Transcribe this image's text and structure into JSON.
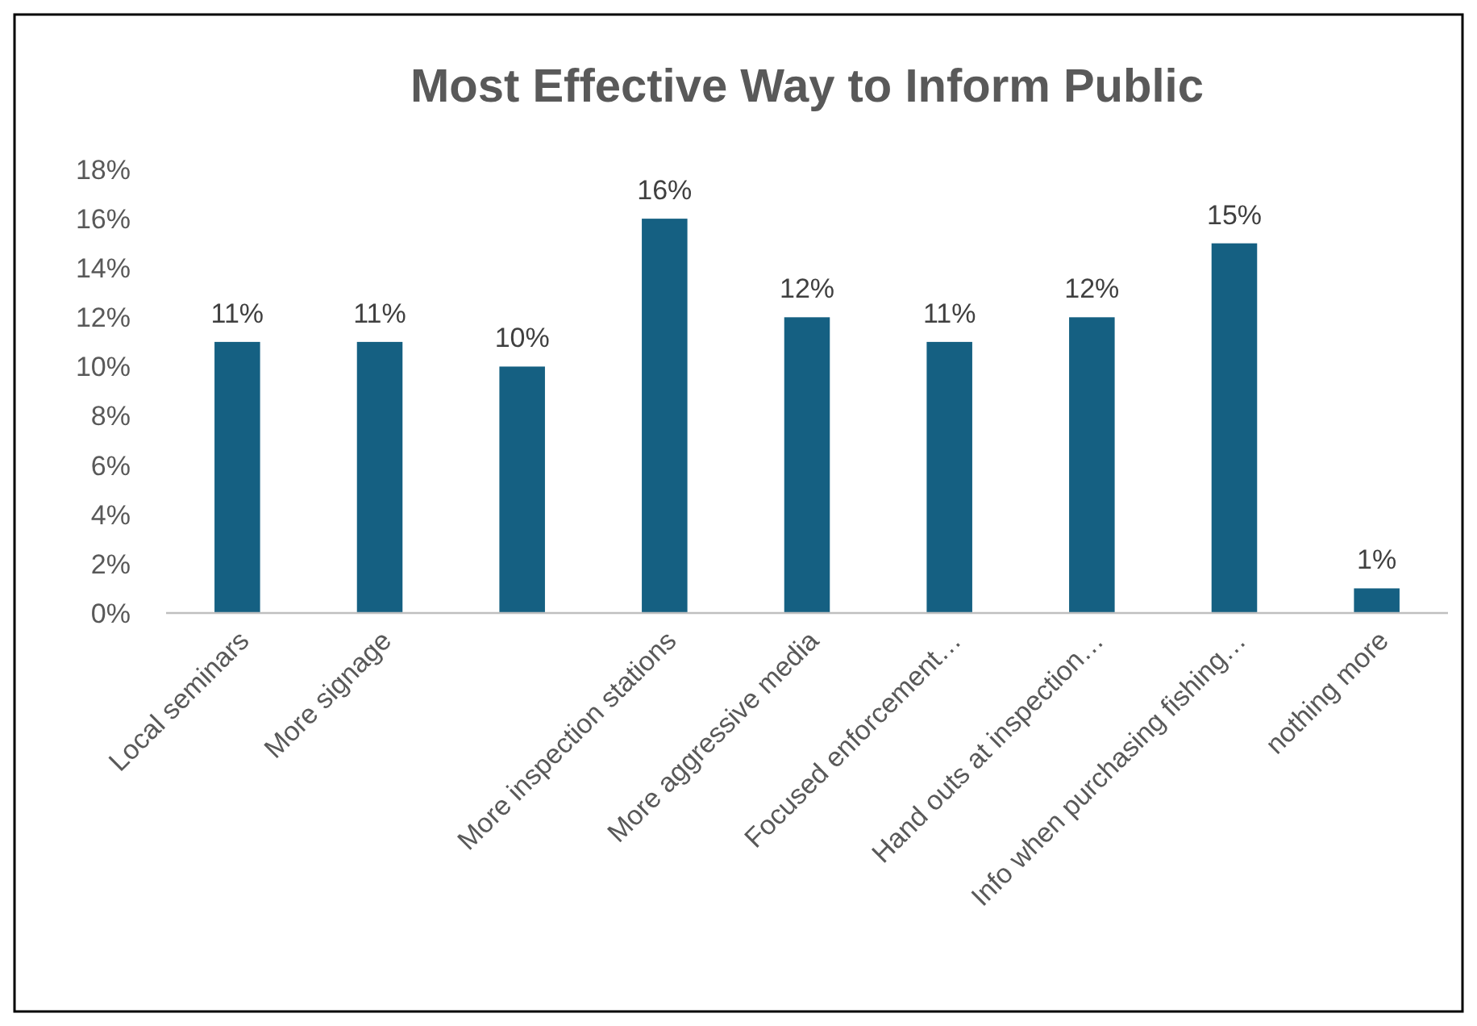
{
  "chart_data": {
    "type": "bar",
    "title": "Most Effective Way to Inform Public",
    "categories": [
      "Local seminars",
      "More signage",
      null,
      "More inspection stations",
      "More aggressive media",
      "Focused enforcement…",
      "Hand outs at inspection…",
      "Info when purchasing fishing…",
      "nothing more"
    ],
    "values": [
      11,
      11,
      10,
      16,
      12,
      11,
      12,
      15,
      1
    ],
    "value_labels": [
      "11%",
      "11%",
      "10%",
      "16%",
      "12%",
      "11%",
      "12%",
      "15%",
      "1%"
    ],
    "color": "#156082",
    "ylim": [
      0,
      18
    ],
    "yticks": [
      {
        "value": 0,
        "label": "0%"
      },
      {
        "value": 2,
        "label": "2%"
      },
      {
        "value": 4,
        "label": "4%"
      },
      {
        "value": 6,
        "label": "6%"
      },
      {
        "value": 8,
        "label": "8%"
      },
      {
        "value": 10,
        "label": "10%"
      },
      {
        "value": 12,
        "label": "12%"
      },
      {
        "value": 14,
        "label": "14%"
      },
      {
        "value": 16,
        "label": "16%"
      },
      {
        "value": 18,
        "label": "18%"
      }
    ],
    "grid": false
  }
}
